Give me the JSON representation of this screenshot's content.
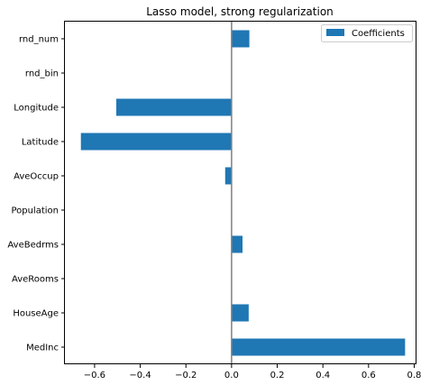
{
  "chart_data": {
    "type": "bar",
    "orientation": "horizontal",
    "title": "Lasso model, strong regularization",
    "categories": [
      "MedInc",
      "HouseAge",
      "AveRooms",
      "AveBedrms",
      "Population",
      "AveOccup",
      "Latitude",
      "Longitude",
      "rnd_bin",
      "rnd_num"
    ],
    "series": [
      {
        "name": "Coefficients",
        "color": "#1f77b4",
        "values": [
          0.76,
          0.075,
          0.0,
          0.048,
          0.0,
          -0.028,
          -0.66,
          -0.505,
          0.0,
          0.078
        ]
      }
    ],
    "xlim": [
      -0.73,
      0.81
    ],
    "xticks": [
      -0.6,
      -0.4,
      -0.2,
      0.0,
      0.2,
      0.4,
      0.6,
      0.8
    ],
    "xtick_labels": [
      "−0.6",
      "−0.4",
      "−0.2",
      "0.0",
      "0.2",
      "0.4",
      "0.6",
      "0.8"
    ],
    "zero_line": true,
    "zero_line_color": "#808080",
    "grid": false,
    "legend_position": "top-right"
  }
}
